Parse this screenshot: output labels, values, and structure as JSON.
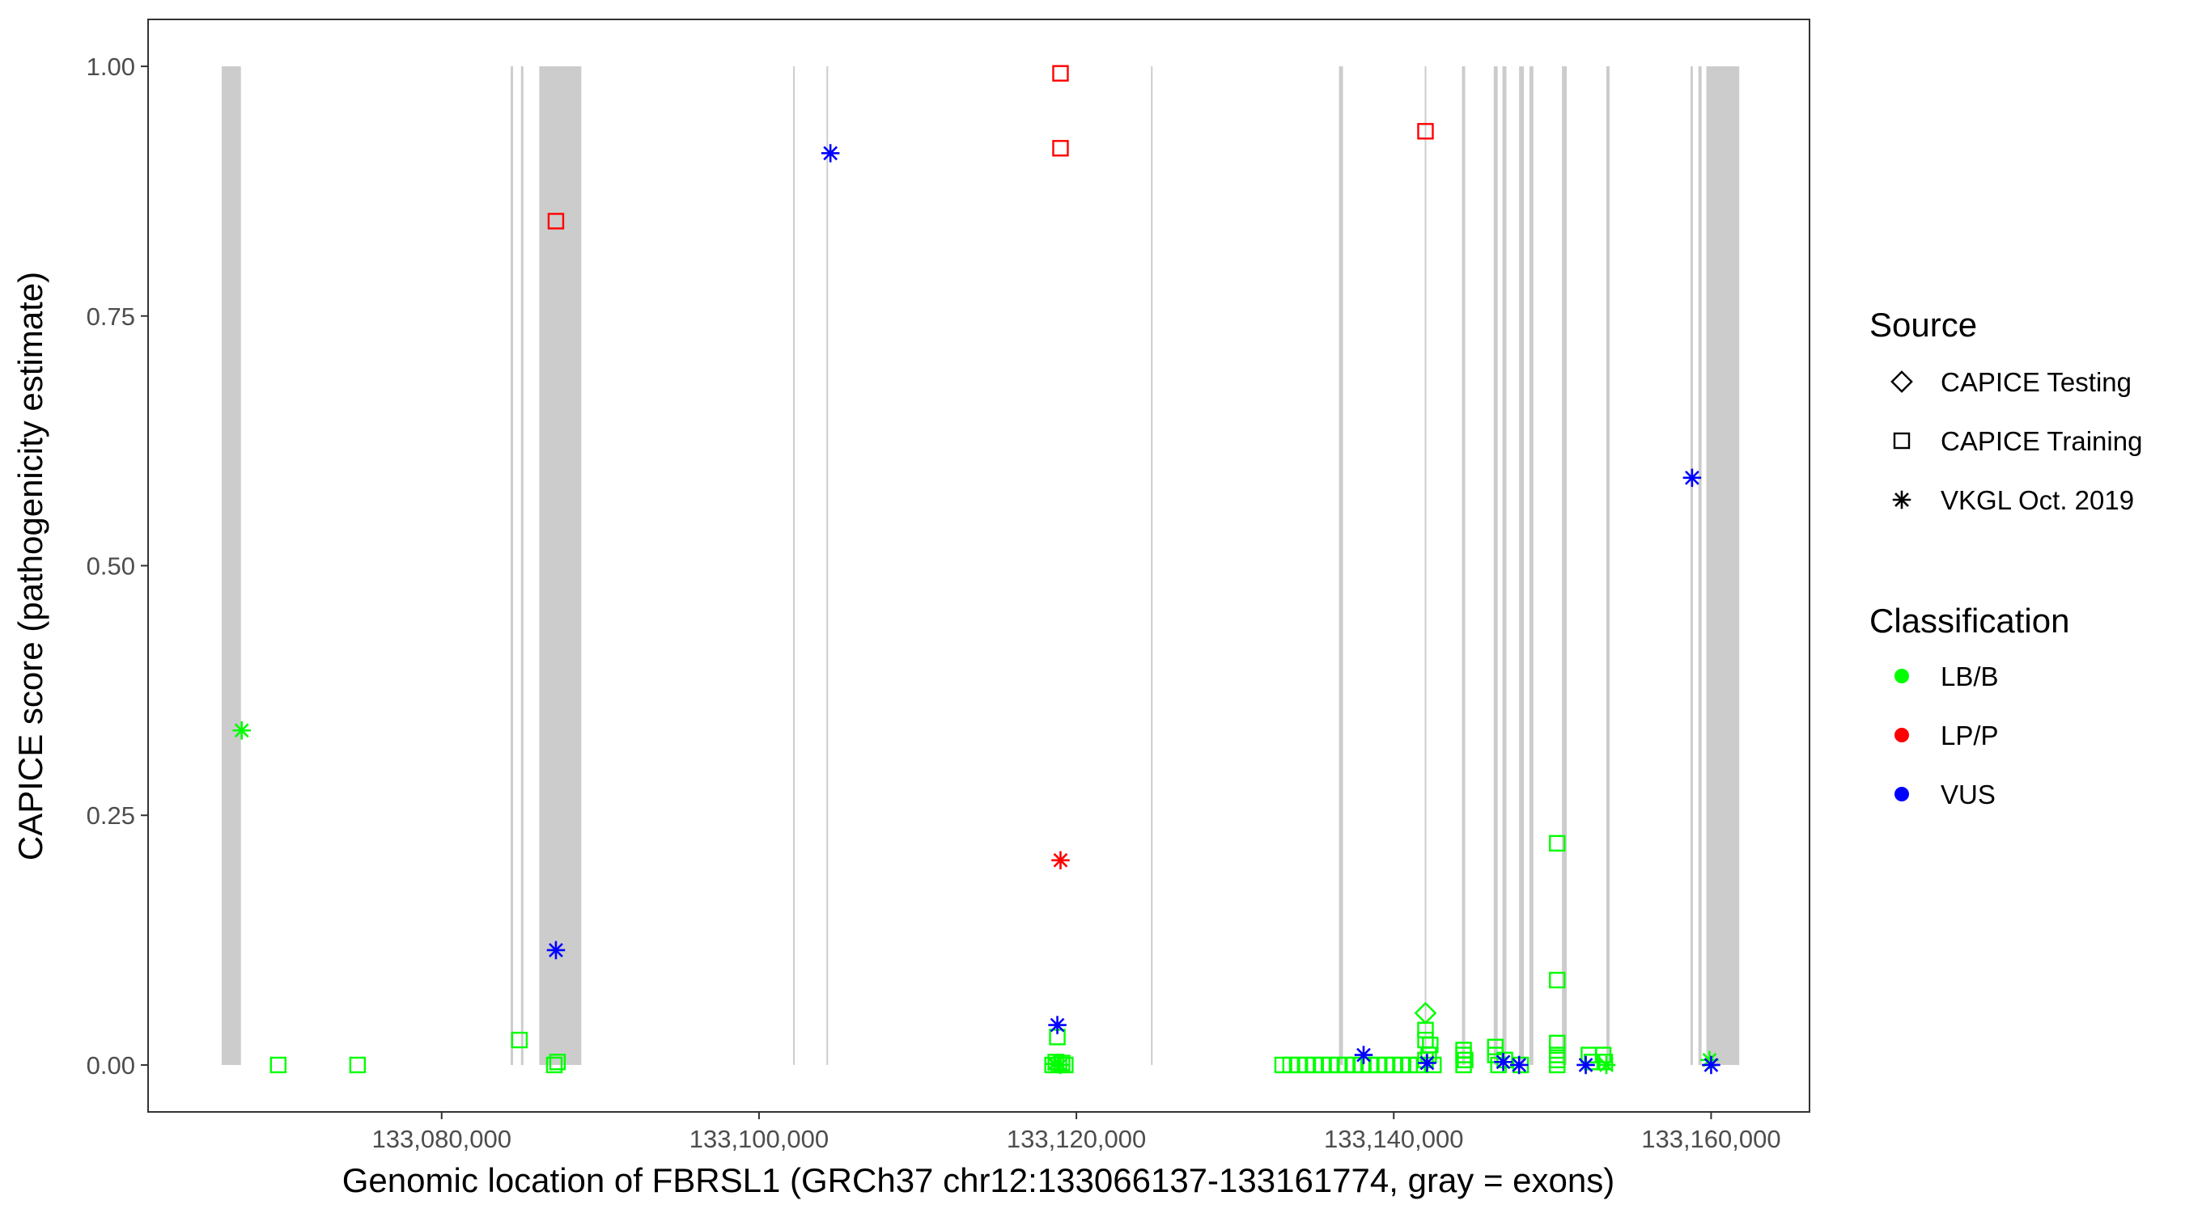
{
  "chart_data": {
    "type": "scatter",
    "title": "",
    "xlabel": "Genomic location of FBRSL1 (GRCh37 chr12:133066137-133161774, gray = exons)",
    "ylabel": "CAPICE score (pathogenicity estimate)",
    "xlim": [
      133061500,
      133166200
    ],
    "ylim": [
      -0.047,
      1.047
    ],
    "x_ticks": [
      133080000,
      133100000,
      133120000,
      133140000,
      133160000
    ],
    "x_tick_labels": [
      "133,080,000",
      "133,100,000",
      "133,120,000",
      "133,140,000",
      "133,160,000"
    ],
    "y_ticks": [
      0,
      0.25,
      0.5,
      0.75,
      1
    ],
    "y_tick_labels": [
      "0.00",
      "0.25",
      "0.50",
      "0.75",
      "1.00"
    ],
    "grid": false,
    "exons": [
      [
        133066137,
        133067350
      ],
      [
        133084350,
        133084500
      ],
      [
        133085000,
        133085150
      ],
      [
        133086150,
        133088800
      ],
      [
        133102150,
        133102250
      ],
      [
        133104250,
        133104350
      ],
      [
        133124700,
        133124800
      ],
      [
        133136550,
        133136800
      ],
      [
        133141950,
        133142050
      ],
      [
        133144300,
        133144500
      ],
      [
        133146300,
        133146550
      ],
      [
        133146850,
        133147100
      ],
      [
        133147900,
        133148200
      ],
      [
        133148550,
        133148800
      ],
      [
        133150600,
        133150900
      ],
      [
        133153400,
        133153600
      ],
      [
        133158700,
        133158850
      ],
      [
        133159200,
        133159400
      ],
      [
        133159700,
        133161774
      ]
    ],
    "legend": {
      "placement": "right",
      "source_title": "Source",
      "source_items": [
        {
          "label": "CAPICE Testing",
          "shape": "diamond"
        },
        {
          "label": "CAPICE Training",
          "shape": "square"
        },
        {
          "label": "VKGL Oct. 2019",
          "shape": "asterisk"
        }
      ],
      "classification_title": "Classification",
      "classification_items": [
        {
          "label": "LB/B",
          "color": "#00ff00"
        },
        {
          "label": "LP/P",
          "color": "#ff0000"
        },
        {
          "label": "VUS",
          "color": "#0000ff"
        }
      ]
    },
    "series": [
      {
        "name": "LB/B",
        "color": "#00ff00",
        "points": [
          {
            "x": 133067400,
            "y": 0.335,
            "shape": "asterisk"
          },
          {
            "x": 133069700,
            "y": 0.0,
            "shape": "square"
          },
          {
            "x": 133074700,
            "y": 0.0,
            "shape": "square"
          },
          {
            "x": 133084900,
            "y": 0.025,
            "shape": "square"
          },
          {
            "x": 133087100,
            "y": 0.0,
            "shape": "square"
          },
          {
            "x": 133087300,
            "y": 0.003,
            "shape": "square"
          },
          {
            "x": 133118800,
            "y": 0.028,
            "shape": "square"
          },
          {
            "x": 133118500,
            "y": 0.0,
            "shape": "square"
          },
          {
            "x": 133118700,
            "y": 0.003,
            "shape": "square"
          },
          {
            "x": 133118900,
            "y": 0.0,
            "shape": "square"
          },
          {
            "x": 133119100,
            "y": 0.002,
            "shape": "square"
          },
          {
            "x": 133119300,
            "y": 0.0,
            "shape": "square"
          },
          {
            "x": 133118600,
            "y": 0.001,
            "shape": "asterisk"
          },
          {
            "x": 133119000,
            "y": 0.0,
            "shape": "asterisk"
          },
          {
            "x": 133133000,
            "y": 0.0,
            "shape": "square"
          },
          {
            "x": 133133500,
            "y": 0.0,
            "shape": "square"
          },
          {
            "x": 133134000,
            "y": 0.0,
            "shape": "square"
          },
          {
            "x": 133134500,
            "y": 0.0,
            "shape": "square"
          },
          {
            "x": 133135000,
            "y": 0.0,
            "shape": "square"
          },
          {
            "x": 133135500,
            "y": 0.0,
            "shape": "square"
          },
          {
            "x": 133136000,
            "y": 0.0,
            "shape": "square"
          },
          {
            "x": 133136500,
            "y": 0.0,
            "shape": "square"
          },
          {
            "x": 133137000,
            "y": 0.0,
            "shape": "square"
          },
          {
            "x": 133137500,
            "y": 0.0,
            "shape": "square"
          },
          {
            "x": 133138000,
            "y": 0.0,
            "shape": "square"
          },
          {
            "x": 133138500,
            "y": 0.0,
            "shape": "square"
          },
          {
            "x": 133139000,
            "y": 0.0,
            "shape": "square"
          },
          {
            "x": 133139500,
            "y": 0.0,
            "shape": "square"
          },
          {
            "x": 133140000,
            "y": 0.0,
            "shape": "square"
          },
          {
            "x": 133140500,
            "y": 0.0,
            "shape": "square"
          },
          {
            "x": 133141000,
            "y": 0.0,
            "shape": "square"
          },
          {
            "x": 133141500,
            "y": 0.0,
            "shape": "square"
          },
          {
            "x": 133142000,
            "y": 0.052,
            "shape": "diamond"
          },
          {
            "x": 133142000,
            "y": 0.035,
            "shape": "square"
          },
          {
            "x": 133142000,
            "y": 0.025,
            "shape": "square"
          },
          {
            "x": 133142300,
            "y": 0.02,
            "shape": "square"
          },
          {
            "x": 133142200,
            "y": 0.01,
            "shape": "square"
          },
          {
            "x": 133142000,
            "y": 0.005,
            "shape": "square"
          },
          {
            "x": 133142500,
            "y": 0.0,
            "shape": "square"
          },
          {
            "x": 133144400,
            "y": 0.015,
            "shape": "square"
          },
          {
            "x": 133144400,
            "y": 0.01,
            "shape": "square"
          },
          {
            "x": 133144500,
            "y": 0.005,
            "shape": "square"
          },
          {
            "x": 133144400,
            "y": 0.0,
            "shape": "square"
          },
          {
            "x": 133146400,
            "y": 0.018,
            "shape": "square"
          },
          {
            "x": 133146400,
            "y": 0.01,
            "shape": "square"
          },
          {
            "x": 133146600,
            "y": 0.0,
            "shape": "square"
          },
          {
            "x": 133147000,
            "y": 0.005,
            "shape": "square"
          },
          {
            "x": 133148000,
            "y": 0.0,
            "shape": "square"
          },
          {
            "x": 133150300,
            "y": 0.222,
            "shape": "square"
          },
          {
            "x": 133150300,
            "y": 0.085,
            "shape": "square"
          },
          {
            "x": 133150300,
            "y": 0.022,
            "shape": "square"
          },
          {
            "x": 133150300,
            "y": 0.01,
            "shape": "square"
          },
          {
            "x": 133150300,
            "y": 0.005,
            "shape": "square"
          },
          {
            "x": 133150300,
            "y": 0.0,
            "shape": "square"
          },
          {
            "x": 133152300,
            "y": 0.01,
            "shape": "square"
          },
          {
            "x": 133152500,
            "y": 0.003,
            "shape": "square"
          },
          {
            "x": 133153200,
            "y": 0.01,
            "shape": "square"
          },
          {
            "x": 133153300,
            "y": 0.003,
            "shape": "square"
          },
          {
            "x": 133153400,
            "y": 0.0,
            "shape": "asterisk"
          },
          {
            "x": 133159900,
            "y": 0.005,
            "shape": "asterisk"
          }
        ]
      },
      {
        "name": "LP/P",
        "color": "#ff0000",
        "points": [
          {
            "x": 133087200,
            "y": 0.845,
            "shape": "square"
          },
          {
            "x": 133119000,
            "y": 0.993,
            "shape": "square"
          },
          {
            "x": 133119000,
            "y": 0.918,
            "shape": "square"
          },
          {
            "x": 133119000,
            "y": 0.205,
            "shape": "asterisk"
          },
          {
            "x": 133142000,
            "y": 0.935,
            "shape": "square"
          }
        ]
      },
      {
        "name": "VUS",
        "color": "#0000ff",
        "points": [
          {
            "x": 133087200,
            "y": 0.115,
            "shape": "asterisk"
          },
          {
            "x": 133104500,
            "y": 0.913,
            "shape": "asterisk"
          },
          {
            "x": 133118800,
            "y": 0.04,
            "shape": "asterisk"
          },
          {
            "x": 133138100,
            "y": 0.01,
            "shape": "asterisk"
          },
          {
            "x": 133142100,
            "y": 0.002,
            "shape": "asterisk"
          },
          {
            "x": 133146900,
            "y": 0.003,
            "shape": "asterisk"
          },
          {
            "x": 133147900,
            "y": 0.0,
            "shape": "asterisk"
          },
          {
            "x": 133152100,
            "y": 0.0,
            "shape": "asterisk"
          },
          {
            "x": 133158800,
            "y": 0.588,
            "shape": "asterisk"
          },
          {
            "x": 133160000,
            "y": 0.0,
            "shape": "asterisk"
          }
        ]
      }
    ]
  }
}
